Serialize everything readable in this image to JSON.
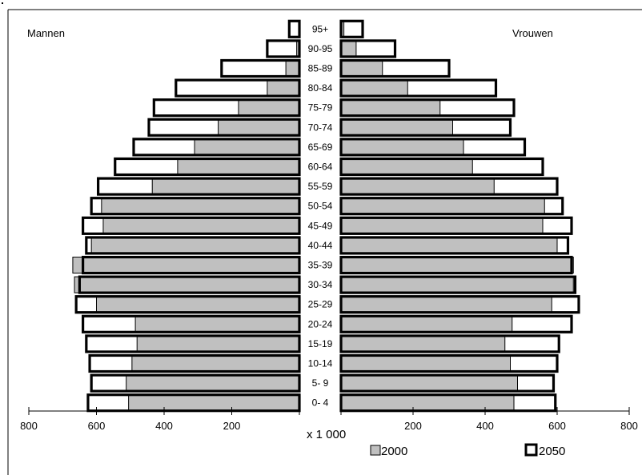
{
  "chart_data": {
    "type": "bar",
    "subtype": "population-pyramid",
    "unit_label": "x 1 000",
    "left_label": "Mannen",
    "right_label": "Vrouwen",
    "categories": [
      "0- 4",
      "5- 9",
      "10-14",
      "15-19",
      "20-24",
      "25-29",
      "30-34",
      "35-39",
      "40-44",
      "45-49",
      "50-54",
      "55-59",
      "60-64",
      "65-69",
      "70-74",
      "75-79",
      "80-84",
      "85-89",
      "90-95",
      "95+"
    ],
    "axis": {
      "min": 0,
      "max": 800,
      "ticks": [
        "800",
        "600",
        "400",
        "200",
        "200",
        "400",
        "600",
        "800"
      ]
    },
    "legend": [
      "2000",
      "2050"
    ],
    "series": [
      {
        "name": "2000",
        "men": [
          505,
          512,
          495,
          480,
          485,
          600,
          665,
          670,
          615,
          580,
          585,
          435,
          360,
          310,
          240,
          180,
          95,
          40,
          8,
          2
        ],
        "women": [
          480,
          490,
          470,
          455,
          475,
          585,
          645,
          645,
          600,
          560,
          565,
          425,
          365,
          340,
          310,
          275,
          185,
          115,
          42,
          8
        ]
      },
      {
        "name": "2050",
        "men": [
          625,
          615,
          620,
          630,
          640,
          660,
          650,
          640,
          630,
          640,
          615,
          595,
          545,
          490,
          445,
          430,
          365,
          230,
          95,
          30
        ],
        "women": [
          595,
          590,
          600,
          605,
          640,
          660,
          650,
          640,
          630,
          640,
          615,
          600,
          560,
          510,
          470,
          480,
          430,
          300,
          150,
          60
        ]
      }
    ]
  }
}
